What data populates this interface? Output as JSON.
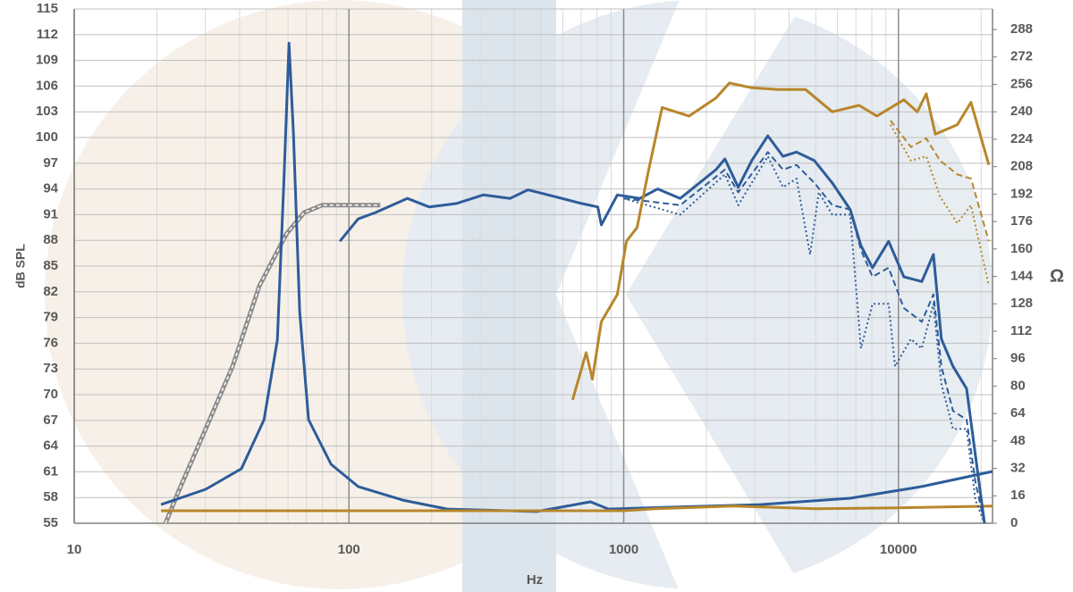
{
  "chart_data": {
    "type": "line",
    "x_label": "Hz",
    "y_label": "dB SPL",
    "y2_label": "Ω",
    "xscale": "log",
    "xlim": [
      10,
      22000
    ],
    "xticks": [
      10,
      100,
      1000,
      10000
    ],
    "ylim": [
      55,
      115
    ],
    "yticks": [
      55,
      58,
      61,
      64,
      67,
      70,
      73,
      76,
      79,
      82,
      85,
      88,
      91,
      94,
      97,
      100,
      103,
      106,
      109,
      112,
      115
    ],
    "y2lim": [
      0,
      300
    ],
    "y2ticks": [
      0,
      16,
      32,
      48,
      64,
      80,
      96,
      112,
      128,
      144,
      160,
      176,
      192,
      208,
      224,
      240,
      256,
      272,
      288
    ],
    "grid": true,
    "series": [
      {
        "color": "#8c8c8c",
        "style": "double",
        "x": [
          21.5,
          24,
          30.1,
          37.7,
          47.2,
          59.2,
          68.7,
          79.8,
          100,
          130
        ],
        "values": [
          55,
          58.75,
          66,
          73.3,
          82.7,
          88.75,
          91.25,
          92.1,
          92.1,
          92.1
        ]
      },
      {
        "color": "#2e5c9a",
        "style": "solid",
        "axis": "y2",
        "x": [
          20.7,
          30.1,
          40.6,
          49.1,
          54.9,
          58,
          60.5,
          62.8,
          66.2,
          71.3,
          86.1,
          108,
          157,
          228,
          483,
          757,
          880,
          1490,
          3150,
          6675,
          12160,
          22000
        ],
        "values": [
          10.9,
          19.8,
          31.8,
          60.4,
          107,
          201,
          280,
          227,
          123,
          60.4,
          34.4,
          21.4,
          13.5,
          8.3,
          6.8,
          12.5,
          8.3,
          9.4,
          10.9,
          14.6,
          21.4,
          30.2
        ]
      },
      {
        "color": "#b8862b",
        "style": "solid",
        "axis": "y2",
        "x": [
          20.7,
          100,
          1000,
          1300,
          2500,
          5000,
          10000,
          22000
        ],
        "values": [
          7.3,
          7.3,
          7.3,
          8.5,
          10,
          8.5,
          9,
          10
        ]
      },
      {
        "color": "#2e5c9a",
        "style": "solid",
        "x": [
          92.7,
          108,
          125,
          163,
          196,
          246,
          308,
          386,
          448,
          561,
          703,
          805,
          829,
          948,
          1145,
          1330,
          1605,
          2166,
          2335,
          2612,
          2924,
          3345,
          3800,
          4256,
          4943,
          5744,
          6675,
          7300,
          8047,
          9210,
          10460,
          12160,
          13410,
          14330,
          15800,
          17700,
          19070,
          20560
        ],
        "values": [
          87.9,
          90.5,
          91.25,
          92.9,
          91.9,
          92.3,
          93.3,
          92.9,
          93.9,
          93.1,
          92.3,
          91.9,
          89.8,
          93.3,
          92.9,
          94,
          92.9,
          96.25,
          97.5,
          94.2,
          97.3,
          100.2,
          97.8,
          98.3,
          97.3,
          94.7,
          91.6,
          87.4,
          84.8,
          87.9,
          83.75,
          83.2,
          86.35,
          76.5,
          73.3,
          70.7,
          62.9,
          55
        ]
      },
      {
        "color": "#2e5c9a",
        "style": "dashed",
        "x": [
          1000,
          1605,
          2335,
          2612,
          3345,
          3800,
          4256,
          4943,
          5744,
          6675,
          7300,
          8047,
          9210,
          10460,
          12160,
          13410,
          14330,
          15800,
          17700,
          19070,
          20560
        ],
        "values": [
          92.9,
          92.1,
          96.25,
          93.6,
          98.3,
          96.25,
          96.8,
          94.7,
          92.1,
          91.6,
          86.9,
          83.75,
          84.8,
          80.1,
          78.5,
          81.7,
          73.3,
          68.1,
          67.1,
          59.8,
          55
        ]
      },
      {
        "color": "#2e5c9a",
        "style": "dotted",
        "x": [
          1000,
          1605,
          2335,
          2612,
          3345,
          3800,
          4256,
          4770,
          5130,
          5744,
          6675,
          7300,
          8047,
          9210,
          9720,
          11100,
          12160,
          13410,
          14330,
          15800,
          17700,
          19070,
          20560
        ],
        "values": [
          92.9,
          91,
          95.7,
          92.1,
          97.8,
          94.2,
          95.2,
          86.35,
          93.6,
          91,
          91,
          75.4,
          80.6,
          80.6,
          73.3,
          76.5,
          75.4,
          80.6,
          71.25,
          66,
          66,
          57.7,
          55
        ]
      },
      {
        "color": "#b8862b",
        "style": "solid",
        "x": [
          652,
          730,
          769,
          829,
          948,
          1023,
          1119,
          1233,
          1380,
          1729,
          2166,
          2424,
          2924,
          3665,
          4586,
          5744,
          7194,
          8350,
          10460,
          11710,
          12630,
          13620,
          16390,
          18360,
          21340
        ],
        "values": [
          69.4,
          74.9,
          71.8,
          78.5,
          81.7,
          87.9,
          89.5,
          96.25,
          103.5,
          102.5,
          104.6,
          106.35,
          105.8,
          105.6,
          105.6,
          103,
          103.75,
          102.5,
          104.4,
          103,
          105.1,
          100.4,
          101.5,
          104.1,
          96.8
        ]
      },
      {
        "color": "#b8862b",
        "style": "dashed",
        "x": [
          9350,
          11100,
          12630,
          14170,
          16390,
          18360,
          21340
        ],
        "values": [
          102,
          98.9,
          99.9,
          97.3,
          95.7,
          95.2,
          87.9
        ]
      },
      {
        "color": "#b8862b",
        "style": "dotted",
        "x": [
          9350,
          11100,
          12630,
          14170,
          16390,
          18360,
          21340
        ],
        "values": [
          101.5,
          97.3,
          97.8,
          93.1,
          90,
          92.1,
          82.7
        ]
      }
    ]
  }
}
